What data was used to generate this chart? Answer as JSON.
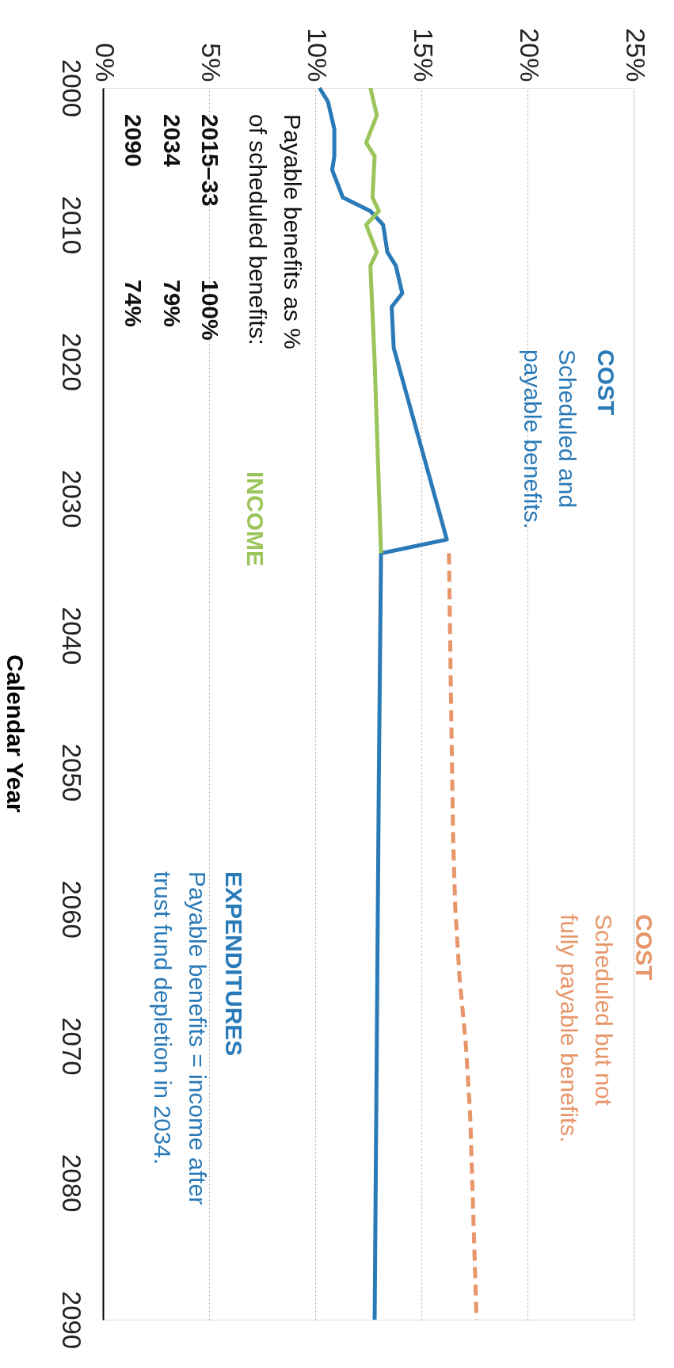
{
  "chart_data": {
    "type": "line",
    "ylabel": "Calendar Year",
    "ylim": [
      2090,
      2000
    ],
    "yticks": [
      2000,
      2010,
      2020,
      2030,
      2040,
      2050,
      2060,
      2070,
      2080,
      2090
    ],
    "xlim": [
      0,
      25
    ],
    "xticks": [
      {
        "value": 0,
        "label": "0%"
      },
      {
        "value": 5,
        "label": "5%"
      },
      {
        "value": 10,
        "label": "10%"
      },
      {
        "value": 15,
        "label": "15%"
      },
      {
        "value": 20,
        "label": "20%"
      },
      {
        "value": 25,
        "label": "25%"
      }
    ],
    "grid": "x",
    "series": [
      {
        "color": "#2a7ab8",
        "line_style": "solid",
        "values": [
          2000,
          2001,
          2003,
          2005,
          2006,
          2008,
          2009,
          2010,
          2012,
          2013,
          2015,
          2016,
          2019,
          2033,
          2034,
          2050,
          2070,
          2090
        ],
        "x": [
          10.2,
          10.6,
          10.9,
          10.9,
          10.8,
          11.3,
          12.6,
          13.2,
          13.4,
          13.8,
          14.1,
          13.6,
          13.7,
          16.2,
          13.1,
          13.0,
          12.9,
          12.8
        ]
      },
      {
        "color": "#9bc55a",
        "line_style": "solid",
        "values": [
          2000,
          2002,
          2004,
          2005,
          2008,
          2009,
          2010,
          2012,
          2013,
          2020,
          2034
        ],
        "x": [
          12.6,
          12.9,
          12.4,
          12.8,
          12.7,
          13.0,
          12.4,
          12.9,
          12.6,
          12.8,
          13.1
        ]
      },
      {
        "color": "#e8956a",
        "line_style": "dashed",
        "values": [
          2034,
          2045,
          2055,
          2060,
          2065,
          2070,
          2075,
          2080,
          2090
        ],
        "x": [
          16.3,
          16.4,
          16.5,
          16.6,
          16.8,
          17.1,
          17.3,
          17.4,
          17.6
        ]
      }
    ],
    "annotations": [
      "Payable benefits as %\nof scheduled benefits:",
      "2015–33",
      "100%",
      "2034",
      "79%",
      "2090",
      "74%",
      "COST",
      "Scheduled and\npayable benefits.",
      "INCOME",
      "EXPENDITURES",
      "Payable benefits = income after\ntrust fund depletion in 2034.",
      "COST",
      "Scheduled but not\nfully payable benefits."
    ]
  }
}
